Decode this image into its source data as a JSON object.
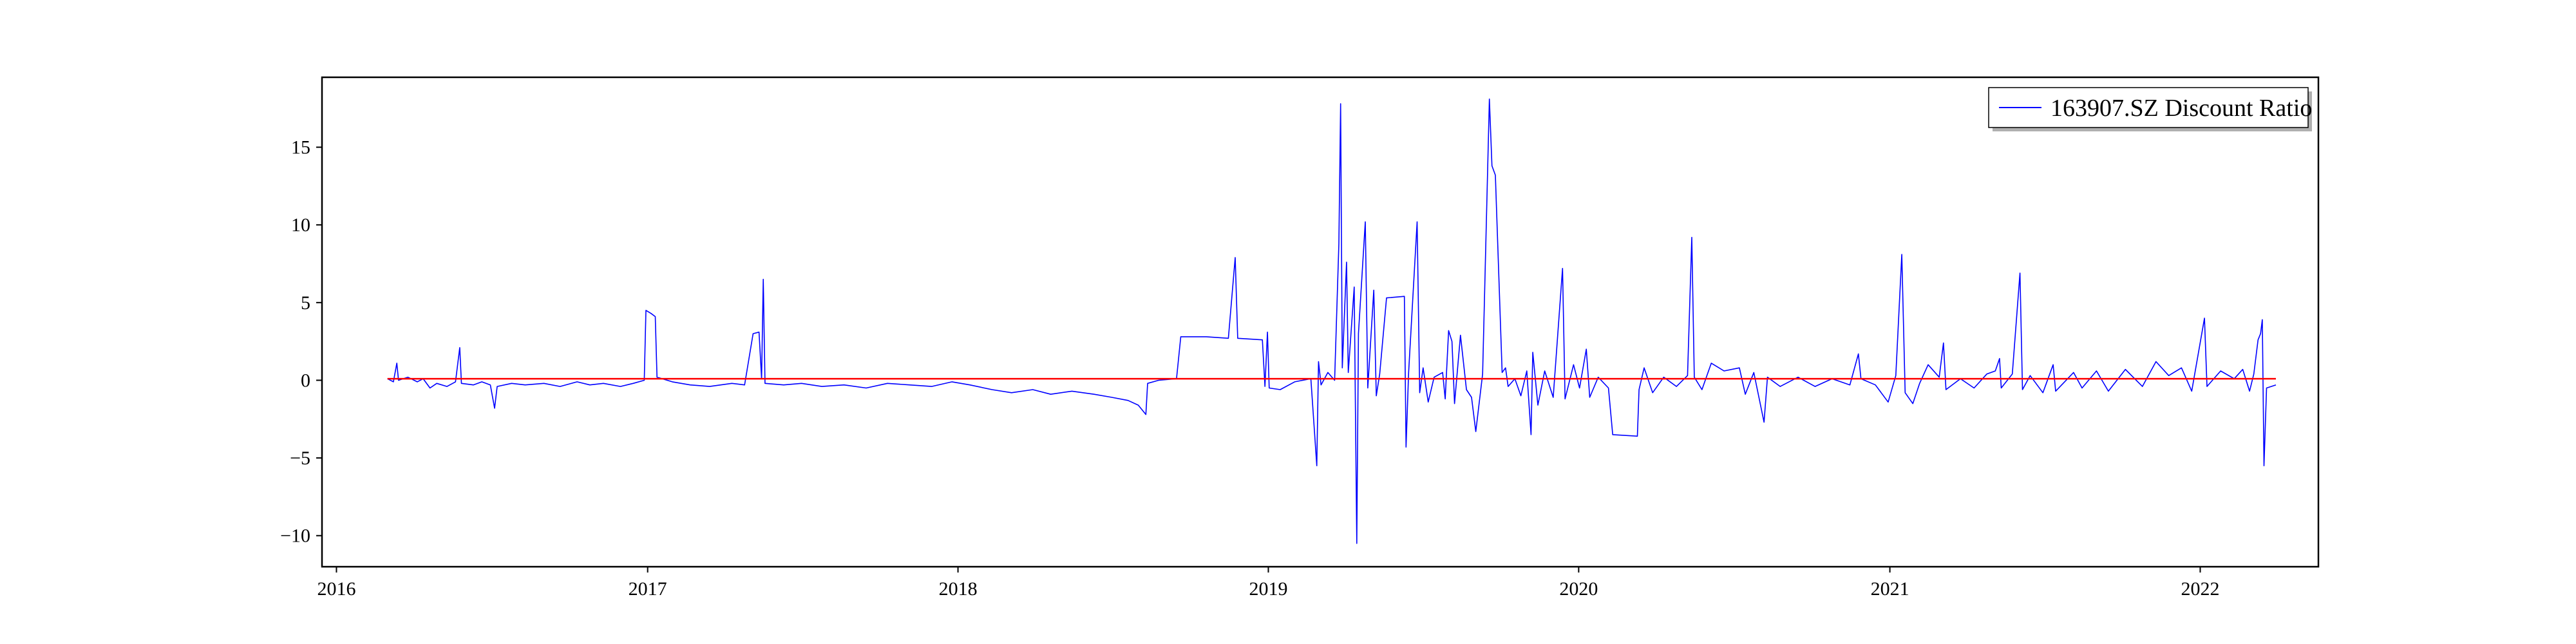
{
  "chart_data": {
    "type": "line",
    "title": "",
    "xlabel": "",
    "ylabel": "",
    "x_range": [
      "2015-12-15",
      "2022-05-20"
    ],
    "y_range": [
      -12.0,
      19.5
    ],
    "x_ticks": [
      "2016",
      "2017",
      "2018",
      "2019",
      "2020",
      "2021",
      "2022"
    ],
    "y_ticks": [
      -10,
      -5,
      0,
      5,
      10,
      15
    ],
    "grid": false,
    "legend": {
      "position": "top-right",
      "entries": [
        "163907.SZ Discount Ratio"
      ]
    },
    "colors": {
      "series": "#0000ff",
      "reference": "#ff0000",
      "axes": "#000000"
    },
    "reference_line": {
      "y": 0.1,
      "from": "2016-03-01",
      "to": "2022-03-31"
    },
    "series": [
      {
        "name": "163907.SZ Discount Ratio",
        "points": [
          [
            "2016-03-01",
            0.1
          ],
          [
            "2016-03-08",
            -0.1
          ],
          [
            "2016-03-12",
            1.1
          ],
          [
            "2016-03-14",
            0.0
          ],
          [
            "2016-03-25",
            0.2
          ],
          [
            "2016-04-05",
            -0.1
          ],
          [
            "2016-04-12",
            0.1
          ],
          [
            "2016-04-20",
            -0.5
          ],
          [
            "2016-04-28",
            -0.2
          ],
          [
            "2016-05-10",
            -0.4
          ],
          [
            "2016-05-20",
            -0.1
          ],
          [
            "2016-05-25",
            2.1
          ],
          [
            "2016-05-27",
            -0.2
          ],
          [
            "2016-06-10",
            -0.3
          ],
          [
            "2016-06-20",
            -0.1
          ],
          [
            "2016-06-30",
            -0.3
          ],
          [
            "2016-07-05",
            -1.8
          ],
          [
            "2016-07-08",
            -0.4
          ],
          [
            "2016-07-25",
            -0.2
          ],
          [
            "2016-08-10",
            -0.3
          ],
          [
            "2016-09-01",
            -0.2
          ],
          [
            "2016-09-20",
            -0.4
          ],
          [
            "2016-10-10",
            -0.1
          ],
          [
            "2016-10-25",
            -0.3
          ],
          [
            "2016-11-10",
            -0.2
          ],
          [
            "2016-11-30",
            -0.4
          ],
          [
            "2016-12-15",
            -0.2
          ],
          [
            "2016-12-28",
            0.0
          ],
          [
            "2016-12-30",
            4.5
          ],
          [
            "2017-01-05",
            4.3
          ],
          [
            "2017-01-10",
            4.1
          ],
          [
            "2017-01-12",
            0.2
          ],
          [
            "2017-01-30",
            -0.1
          ],
          [
            "2017-02-20",
            -0.3
          ],
          [
            "2017-03-15",
            -0.4
          ],
          [
            "2017-04-10",
            -0.2
          ],
          [
            "2017-04-25",
            -0.3
          ],
          [
            "2017-05-05",
            3.0
          ],
          [
            "2017-05-12",
            3.1
          ],
          [
            "2017-05-15",
            0.1
          ],
          [
            "2017-05-17",
            6.5
          ],
          [
            "2017-05-19",
            -0.2
          ],
          [
            "2017-06-10",
            -0.3
          ],
          [
            "2017-07-01",
            -0.2
          ],
          [
            "2017-07-25",
            -0.4
          ],
          [
            "2017-08-20",
            -0.3
          ],
          [
            "2017-09-15",
            -0.5
          ],
          [
            "2017-10-10",
            -0.2
          ],
          [
            "2017-11-05",
            -0.3
          ],
          [
            "2017-12-01",
            -0.4
          ],
          [
            "2017-12-25",
            -0.1
          ],
          [
            "2018-01-15",
            -0.3
          ],
          [
            "2018-02-10",
            -0.6
          ],
          [
            "2018-03-05",
            -0.8
          ],
          [
            "2018-03-30",
            -0.6
          ],
          [
            "2018-04-20",
            -0.9
          ],
          [
            "2018-05-15",
            -0.7
          ],
          [
            "2018-06-10",
            -0.9
          ],
          [
            "2018-07-01",
            -1.1
          ],
          [
            "2018-07-20",
            -1.3
          ],
          [
            "2018-08-01",
            -1.6
          ],
          [
            "2018-08-10",
            -2.2
          ],
          [
            "2018-08-12",
            -0.2
          ],
          [
            "2018-08-25",
            0.0
          ],
          [
            "2018-09-15",
            0.1
          ],
          [
            "2018-09-20",
            2.8
          ],
          [
            "2018-10-20",
            2.8
          ],
          [
            "2018-11-15",
            2.7
          ],
          [
            "2018-11-23",
            7.9
          ],
          [
            "2018-11-26",
            2.7
          ],
          [
            "2018-12-25",
            2.6
          ],
          [
            "2018-12-28",
            -0.4
          ],
          [
            "2018-12-31",
            3.1
          ],
          [
            "2019-01-02",
            -0.5
          ],
          [
            "2019-01-15",
            -0.6
          ],
          [
            "2019-02-01",
            -0.1
          ],
          [
            "2019-02-20",
            0.1
          ],
          [
            "2019-02-27",
            -5.5
          ],
          [
            "2019-03-01",
            1.2
          ],
          [
            "2019-03-04",
            -0.3
          ],
          [
            "2019-03-12",
            0.5
          ],
          [
            "2019-03-20",
            0.0
          ],
          [
            "2019-03-25",
            8.8
          ],
          [
            "2019-03-27",
            17.8
          ],
          [
            "2019-03-29",
            0.8
          ],
          [
            "2019-04-03",
            7.6
          ],
          [
            "2019-04-05",
            0.5
          ],
          [
            "2019-04-12",
            6.0
          ],
          [
            "2019-04-15",
            -10.5
          ],
          [
            "2019-04-17",
            3.0
          ],
          [
            "2019-04-25",
            10.2
          ],
          [
            "2019-04-28",
            -0.5
          ],
          [
            "2019-05-05",
            5.8
          ],
          [
            "2019-05-08",
            -1.0
          ],
          [
            "2019-05-12",
            0.4
          ],
          [
            "2019-05-20",
            5.3
          ],
          [
            "2019-06-10",
            5.4
          ],
          [
            "2019-06-12",
            -4.3
          ],
          [
            "2019-06-15",
            0.5
          ],
          [
            "2019-06-25",
            10.2
          ],
          [
            "2019-06-28",
            -0.8
          ],
          [
            "2019-07-02",
            0.8
          ],
          [
            "2019-07-08",
            -1.4
          ],
          [
            "2019-07-15",
            0.2
          ],
          [
            "2019-07-25",
            0.5
          ],
          [
            "2019-07-28",
            -1.2
          ],
          [
            "2019-08-01",
            3.2
          ],
          [
            "2019-08-05",
            2.5
          ],
          [
            "2019-08-08",
            -1.5
          ],
          [
            "2019-08-15",
            2.9
          ],
          [
            "2019-08-22",
            -0.6
          ],
          [
            "2019-08-28",
            -1.1
          ],
          [
            "2019-09-02",
            -3.3
          ],
          [
            "2019-09-10",
            0.4
          ],
          [
            "2019-09-18",
            18.1
          ],
          [
            "2019-09-21",
            13.8
          ],
          [
            "2019-09-25",
            13.2
          ],
          [
            "2019-10-03",
            0.5
          ],
          [
            "2019-10-07",
            0.8
          ],
          [
            "2019-10-10",
            -0.4
          ],
          [
            "2019-10-18",
            0.1
          ],
          [
            "2019-10-25",
            -1.0
          ],
          [
            "2019-11-01",
            0.6
          ],
          [
            "2019-11-06",
            -3.5
          ],
          [
            "2019-11-08",
            1.8
          ],
          [
            "2019-11-14",
            -1.6
          ],
          [
            "2019-11-22",
            0.6
          ],
          [
            "2019-12-02",
            -1.1
          ],
          [
            "2019-12-13",
            7.2
          ],
          [
            "2019-12-16",
            -1.2
          ],
          [
            "2019-12-26",
            1.0
          ],
          [
            "2020-01-02",
            -0.5
          ],
          [
            "2020-01-10",
            2.0
          ],
          [
            "2020-01-14",
            -1.1
          ],
          [
            "2020-01-24",
            0.2
          ],
          [
            "2020-02-05",
            -0.5
          ],
          [
            "2020-02-10",
            -3.5
          ],
          [
            "2020-03-10",
            -3.6
          ],
          [
            "2020-03-12",
            -0.6
          ],
          [
            "2020-03-18",
            0.8
          ],
          [
            "2020-03-28",
            -0.8
          ],
          [
            "2020-04-10",
            0.2
          ],
          [
            "2020-04-25",
            -0.4
          ],
          [
            "2020-05-08",
            0.3
          ],
          [
            "2020-05-13",
            9.2
          ],
          [
            "2020-05-16",
            0.2
          ],
          [
            "2020-05-25",
            -0.6
          ],
          [
            "2020-06-05",
            1.1
          ],
          [
            "2020-06-20",
            0.6
          ],
          [
            "2020-07-08",
            0.8
          ],
          [
            "2020-07-15",
            -0.9
          ],
          [
            "2020-07-25",
            0.5
          ],
          [
            "2020-08-06",
            -2.7
          ],
          [
            "2020-08-10",
            0.2
          ],
          [
            "2020-08-25",
            -0.4
          ],
          [
            "2020-09-15",
            0.2
          ],
          [
            "2020-10-05",
            -0.4
          ],
          [
            "2020-10-25",
            0.1
          ],
          [
            "2020-11-15",
            -0.3
          ],
          [
            "2020-11-25",
            1.7
          ],
          [
            "2020-11-28",
            0.1
          ],
          [
            "2020-12-15",
            -0.3
          ],
          [
            "2020-12-30",
            -1.4
          ],
          [
            "2021-01-08",
            0.3
          ],
          [
            "2021-01-15",
            8.1
          ],
          [
            "2021-01-19",
            -0.8
          ],
          [
            "2021-01-28",
            -1.5
          ],
          [
            "2021-02-05",
            -0.2
          ],
          [
            "2021-02-15",
            1.0
          ],
          [
            "2021-02-28",
            0.2
          ],
          [
            "2021-03-05",
            2.4
          ],
          [
            "2021-03-08",
            -0.6
          ],
          [
            "2021-03-25",
            0.1
          ],
          [
            "2021-04-10",
            -0.5
          ],
          [
            "2021-04-25",
            0.4
          ],
          [
            "2021-05-05",
            0.6
          ],
          [
            "2021-05-10",
            1.4
          ],
          [
            "2021-05-12",
            -0.5
          ],
          [
            "2021-05-25",
            0.4
          ],
          [
            "2021-06-03",
            6.9
          ],
          [
            "2021-06-06",
            -0.6
          ],
          [
            "2021-06-15",
            0.3
          ],
          [
            "2021-06-30",
            -0.8
          ],
          [
            "2021-07-12",
            1.0
          ],
          [
            "2021-07-15",
            -0.7
          ],
          [
            "2021-08-05",
            0.5
          ],
          [
            "2021-08-15",
            -0.5
          ],
          [
            "2021-09-01",
            0.6
          ],
          [
            "2021-09-15",
            -0.7
          ],
          [
            "2021-10-05",
            0.7
          ],
          [
            "2021-10-25",
            -0.4
          ],
          [
            "2021-11-10",
            1.2
          ],
          [
            "2021-11-25",
            0.3
          ],
          [
            "2021-12-10",
            0.8
          ],
          [
            "2021-12-22",
            -0.7
          ],
          [
            "2022-01-06",
            4.0
          ],
          [
            "2022-01-09",
            -0.4
          ],
          [
            "2022-01-25",
            0.6
          ],
          [
            "2022-02-10",
            0.1
          ],
          [
            "2022-02-20",
            0.7
          ],
          [
            "2022-02-28",
            -0.7
          ],
          [
            "2022-03-05",
            0.4
          ],
          [
            "2022-03-10",
            2.6
          ],
          [
            "2022-03-13",
            3.0
          ],
          [
            "2022-03-15",
            3.9
          ],
          [
            "2022-03-17",
            -5.5
          ],
          [
            "2022-03-20",
            -0.5
          ],
          [
            "2022-03-31",
            -0.3
          ]
        ]
      }
    ]
  }
}
